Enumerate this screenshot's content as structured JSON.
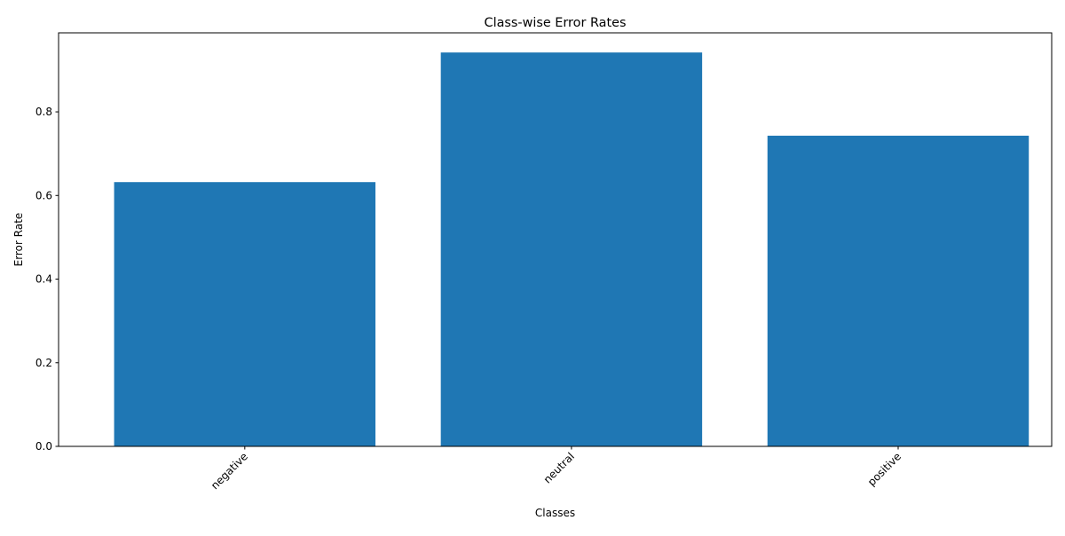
{
  "chart_data": {
    "type": "bar",
    "title": "Class-wise Error Rates",
    "xlabel": "Classes",
    "ylabel": "Error Rate",
    "categories": [
      "negative",
      "neutral",
      "positive"
    ],
    "values": [
      0.632,
      0.942,
      0.743
    ],
    "ylim": [
      0,
      0.989
    ],
    "yticks": [
      "0.0",
      "0.2",
      "0.4",
      "0.6",
      "0.8"
    ],
    "xtick_rotation_deg": 45,
    "grid": false,
    "legend": "none",
    "bar_color": "#1f77b4"
  }
}
